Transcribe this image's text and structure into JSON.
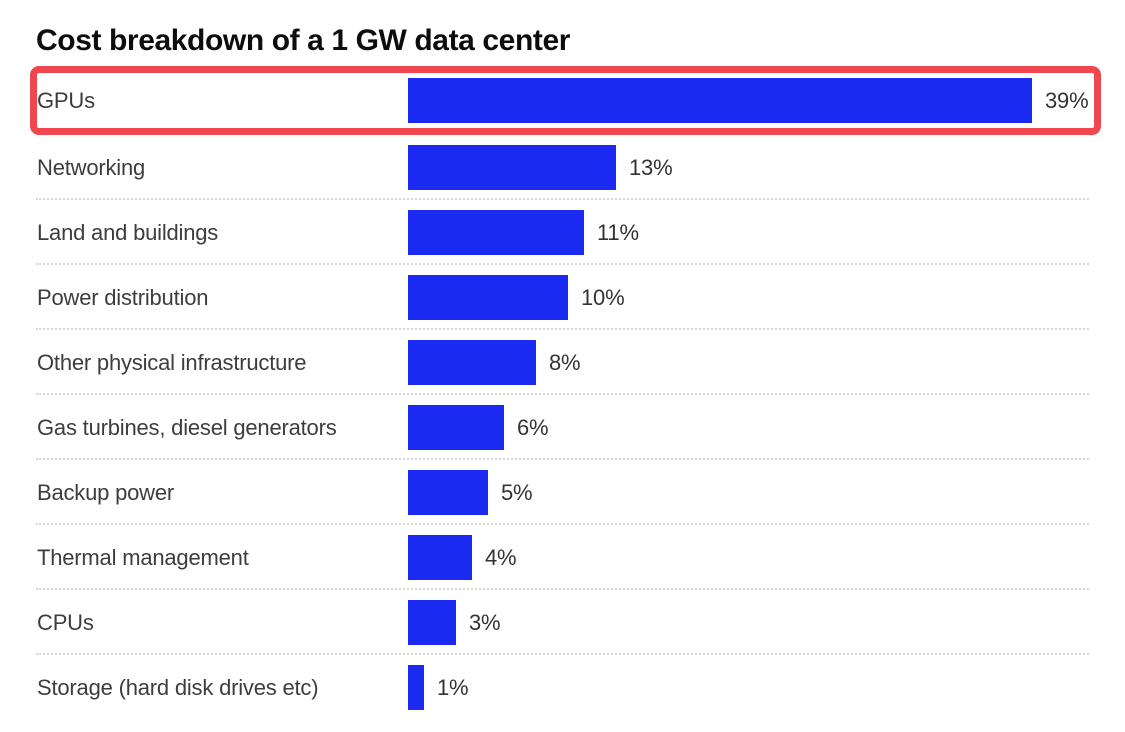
{
  "title": "Cost breakdown of a 1 GW data center",
  "chart_data": {
    "type": "bar",
    "orientation": "horizontal",
    "title": "Cost breakdown of a 1 GW data center",
    "xlabel": "",
    "ylabel": "",
    "categories": [
      "GPUs",
      "Networking",
      "Land and buildings",
      "Power distribution",
      "Other physical infrastructure",
      "Gas turbines, diesel generators",
      "Backup power",
      "Thermal management",
      "CPUs",
      "Storage (hard disk drives etc)"
    ],
    "values": [
      39,
      13,
      11,
      10,
      8,
      6,
      5,
      4,
      3,
      1
    ],
    "labels": [
      "39%",
      "13%",
      "11%",
      "10%",
      "8%",
      "6%",
      "5%",
      "4%",
      "3%",
      "1%"
    ],
    "value_suffix": "%",
    "xlim": [
      0,
      43
    ],
    "grid": false,
    "legend": "none",
    "separator_style": "dotted",
    "annotations": [
      {
        "type": "highlight-box",
        "target_category": "GPUs",
        "color": "#ef474d"
      }
    ]
  },
  "colors": {
    "bar": "#1b2af0",
    "highlight_border": "#ef474d",
    "label_text": "#3d3d3d",
    "value_text": "#333333",
    "title_text": "#0d0d0d",
    "separator": "#d8d8d8",
    "background": "#ffffff"
  }
}
